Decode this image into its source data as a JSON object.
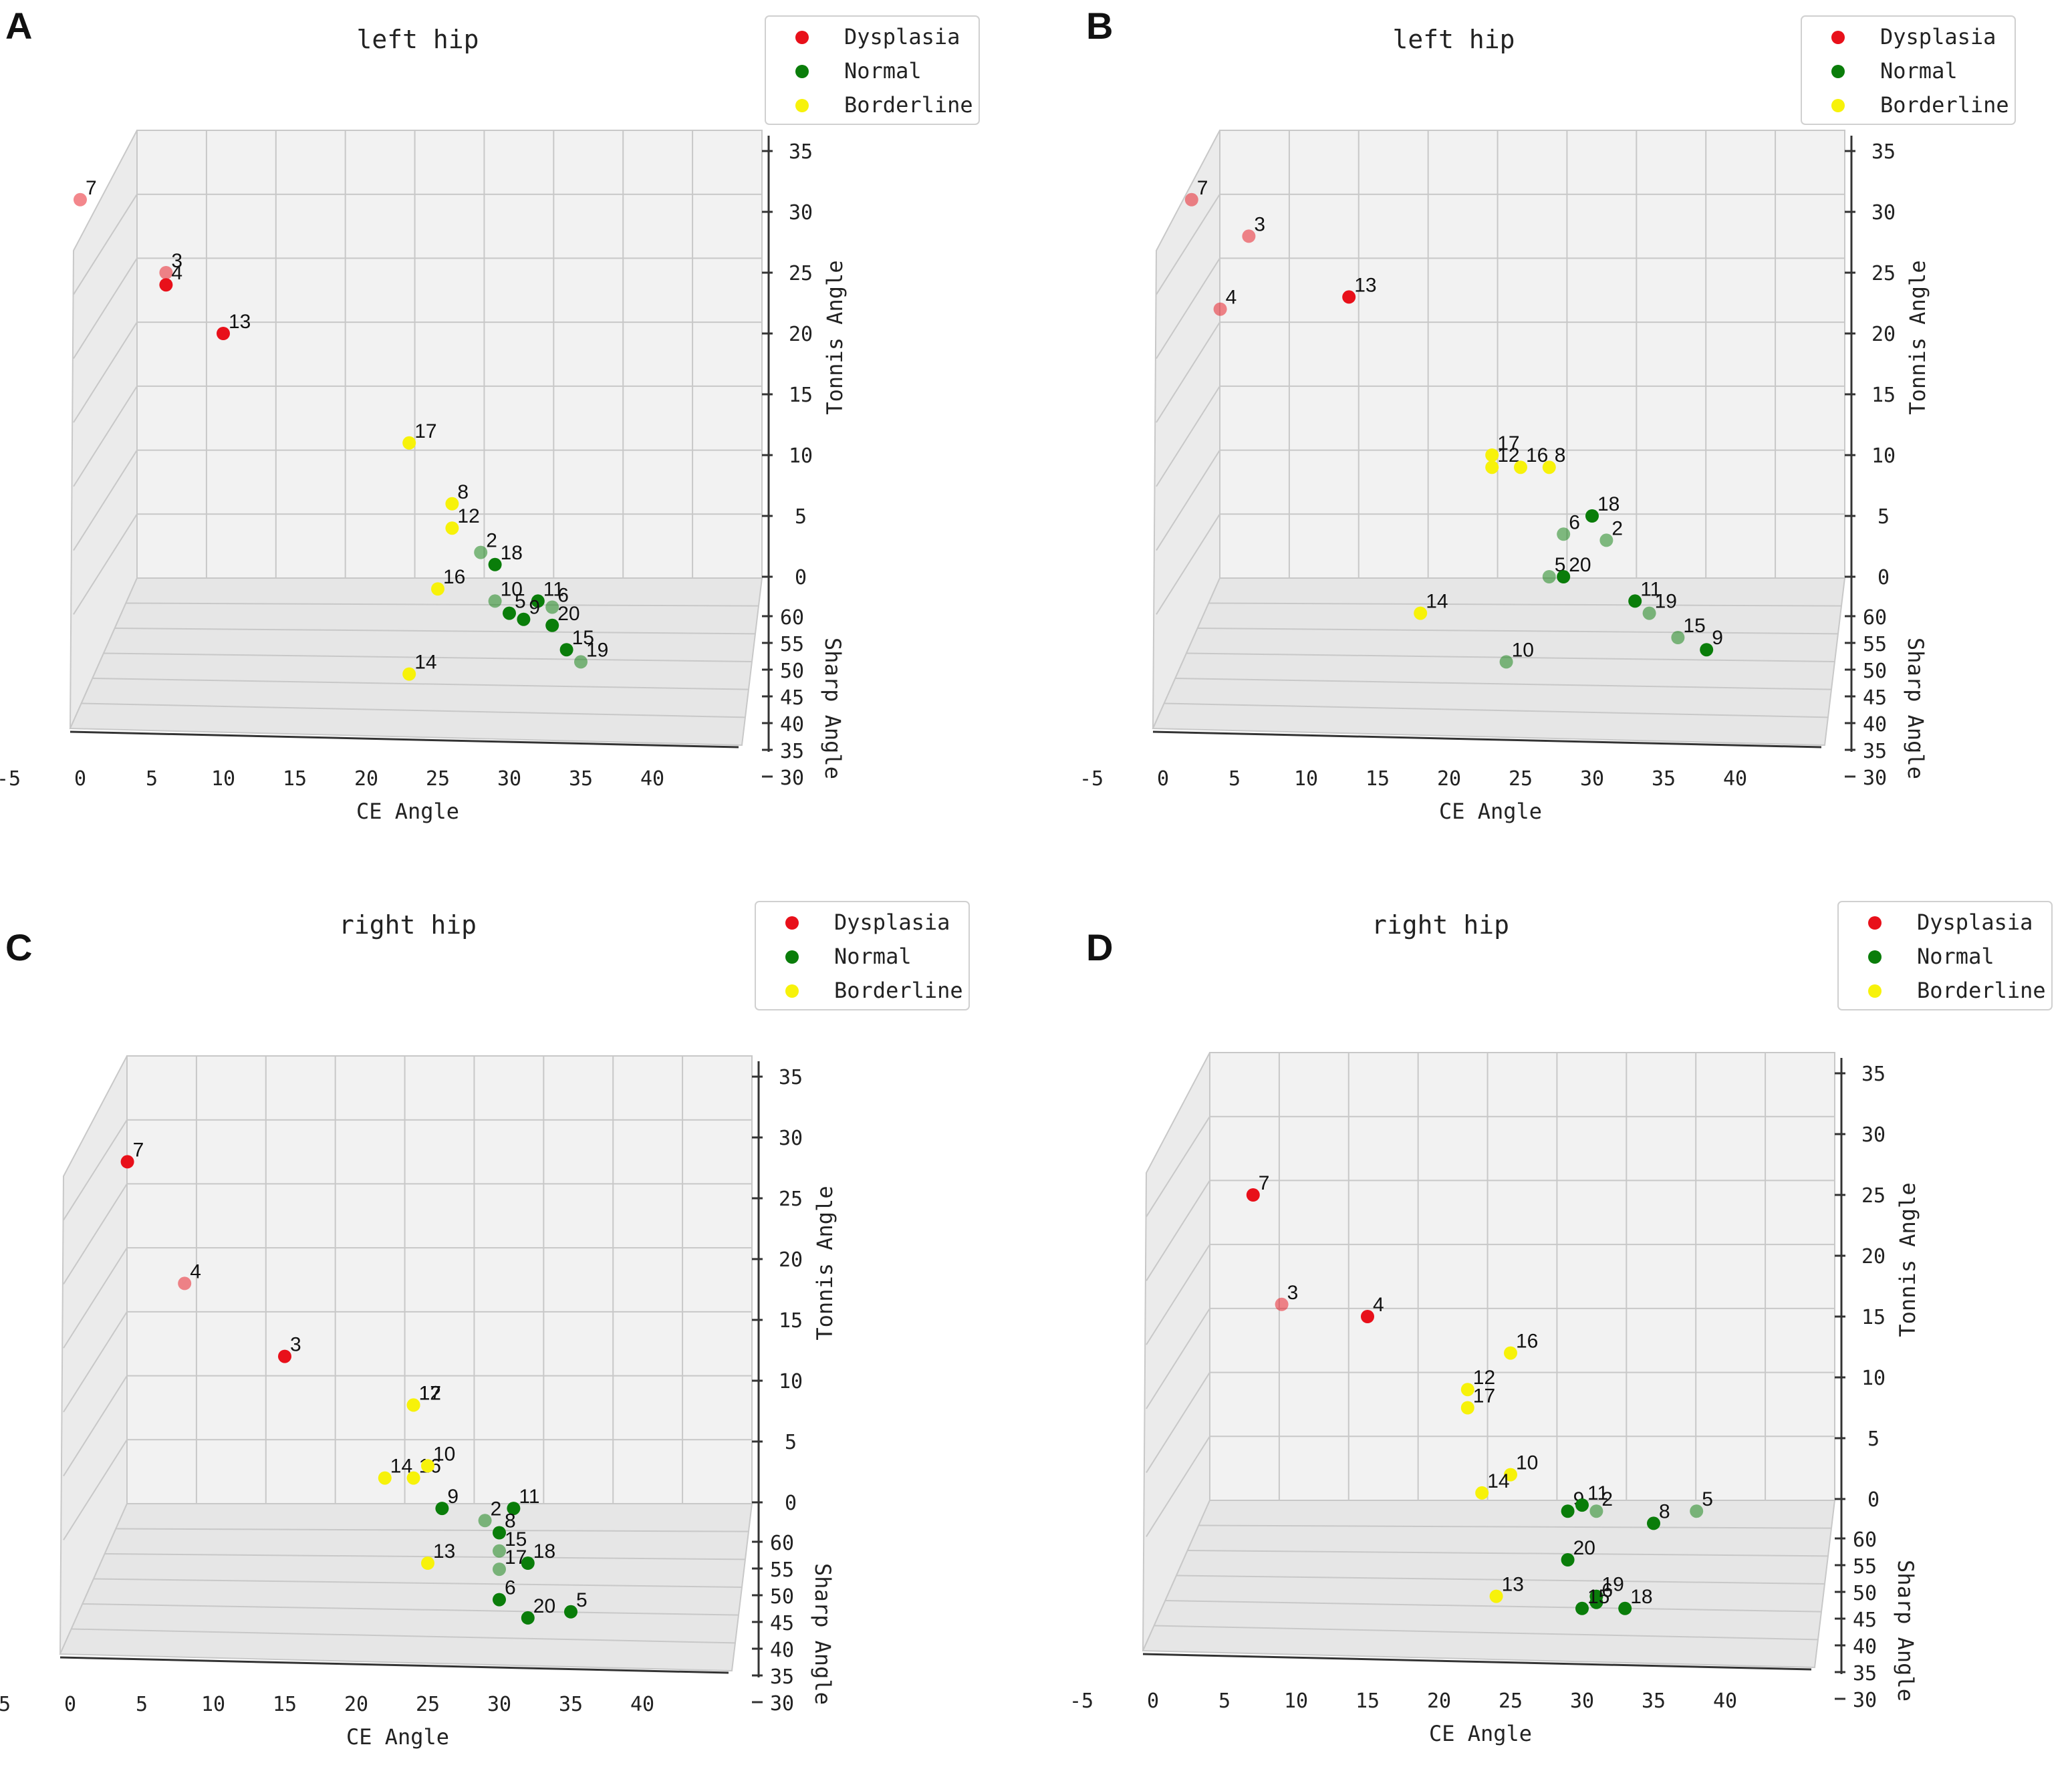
{
  "figure": {
    "panel_labels": [
      "A",
      "B",
      "C",
      "D"
    ]
  },
  "colors": {
    "dysplasia": "#e8101a",
    "normal": "#0a7d0a",
    "borderline": "#f7f20a",
    "pane": "#f2f2f2",
    "grid": "#c8c8c8",
    "axis": "#333333"
  },
  "chart_data": [
    {
      "panel": "A",
      "type": "scatter",
      "title": "left hip",
      "xlabel": "CE Angle",
      "ylabel": "Sharp Angle",
      "zlabel": "Tonnis Angle",
      "x_ticks": [
        "-5",
        "0",
        "5",
        "10",
        "15",
        "20",
        "25",
        "30",
        "35",
        "40"
      ],
      "y_ticks": [
        "60",
        "55",
        "50",
        "45",
        "40",
        "35",
        "30"
      ],
      "z_ticks": [
        "35",
        "30",
        "25",
        "20",
        "15",
        "10",
        "5",
        "0"
      ],
      "xlim": [
        -5,
        40
      ],
      "ylim": [
        30,
        60
      ],
      "zlim": [
        0,
        35
      ],
      "legend": [
        "Dysplasia",
        "Normal",
        "Borderline"
      ],
      "legend_location": "top-right",
      "points": [
        {
          "id": "7",
          "class": "dysplasia",
          "x": 0,
          "z": 31,
          "sharp": 52,
          "faded": true
        },
        {
          "id": "3",
          "class": "dysplasia",
          "x": 6,
          "z": 25,
          "sharp": 52,
          "faded": true
        },
        {
          "id": "4",
          "class": "dysplasia",
          "x": 6,
          "z": 24,
          "sharp": 52,
          "faded": false
        },
        {
          "id": "13",
          "class": "dysplasia",
          "x": 10,
          "z": 20,
          "sharp": 52,
          "faded": false
        },
        {
          "id": "17",
          "class": "borderline",
          "x": 23,
          "z": 11,
          "sharp": 52,
          "faded": false
        },
        {
          "id": "8",
          "class": "borderline",
          "x": 26,
          "z": 6,
          "sharp": 52,
          "faded": false
        },
        {
          "id": "12",
          "class": "borderline",
          "x": 26,
          "z": 4,
          "sharp": 52,
          "faded": false
        },
        {
          "id": "2",
          "class": "normal",
          "x": 28,
          "z": 2,
          "sharp": 52,
          "faded": true
        },
        {
          "id": "18",
          "class": "normal",
          "x": 29,
          "z": 1,
          "sharp": 52,
          "faded": false
        },
        {
          "id": "16",
          "class": "borderline",
          "x": 25,
          "z": -1,
          "sharp": 52,
          "faded": false
        },
        {
          "id": "10",
          "class": "normal",
          "x": 29,
          "z": -2,
          "sharp": 52,
          "faded": true
        },
        {
          "id": "11",
          "class": "normal",
          "x": 32,
          "z": -2,
          "sharp": 52,
          "faded": false
        },
        {
          "id": "6",
          "class": "normal",
          "x": 33,
          "z": -2.5,
          "sharp": 52,
          "faded": true
        },
        {
          "id": "5",
          "class": "normal",
          "x": 30,
          "z": -3,
          "sharp": 52,
          "faded": false
        },
        {
          "id": "9",
          "class": "normal",
          "x": 31,
          "z": -3.5,
          "sharp": 52,
          "faded": false
        },
        {
          "id": "20",
          "class": "normal",
          "x": 33,
          "z": -4,
          "sharp": 52,
          "faded": false
        },
        {
          "id": "15",
          "class": "normal",
          "x": 34,
          "z": -6,
          "sharp": 52,
          "faded": false
        },
        {
          "id": "19",
          "class": "normal",
          "x": 35,
          "z": -7,
          "sharp": 52,
          "faded": true
        },
        {
          "id": "14",
          "class": "borderline",
          "x": 23,
          "z": -8,
          "sharp": 52,
          "faded": false
        }
      ]
    },
    {
      "panel": "B",
      "type": "scatter",
      "title": "left hip",
      "xlabel": "CE Angle",
      "ylabel": "Sharp Angle",
      "zlabel": "Tonnis Angle",
      "x_ticks": [
        "-5",
        "0",
        "5",
        "10",
        "15",
        "20",
        "25",
        "30",
        "35",
        "40"
      ],
      "y_ticks": [
        "60",
        "55",
        "50",
        "45",
        "40",
        "35",
        "30"
      ],
      "z_ticks": [
        "35",
        "30",
        "25",
        "20",
        "15",
        "10",
        "5",
        "0"
      ],
      "xlim": [
        -5,
        40
      ],
      "ylim": [
        30,
        60
      ],
      "zlim": [
        0,
        35
      ],
      "legend": [
        "Dysplasia",
        "Normal",
        "Borderline"
      ],
      "legend_location": "top-right",
      "points": [
        {
          "id": "7",
          "class": "dysplasia",
          "x": 2,
          "z": 31,
          "sharp": 52,
          "faded": true
        },
        {
          "id": "3",
          "class": "dysplasia",
          "x": 6,
          "z": 28,
          "sharp": 52,
          "faded": true
        },
        {
          "id": "13",
          "class": "dysplasia",
          "x": 13,
          "z": 23,
          "sharp": 52,
          "faded": false
        },
        {
          "id": "4",
          "class": "dysplasia",
          "x": 4,
          "z": 22,
          "sharp": 52,
          "faded": true
        },
        {
          "id": "17",
          "class": "borderline",
          "x": 23,
          "z": 10,
          "sharp": 52,
          "faded": false
        },
        {
          "id": "12",
          "class": "borderline",
          "x": 23,
          "z": 9,
          "sharp": 52,
          "faded": false
        },
        {
          "id": "16",
          "class": "borderline",
          "x": 25,
          "z": 9,
          "sharp": 52,
          "faded": false
        },
        {
          "id": "8",
          "class": "borderline",
          "x": 27,
          "z": 9,
          "sharp": 52,
          "faded": false
        },
        {
          "id": "18",
          "class": "normal",
          "x": 30,
          "z": 5,
          "sharp": 52,
          "faded": false
        },
        {
          "id": "6",
          "class": "normal",
          "x": 28,
          "z": 3.5,
          "sharp": 52,
          "faded": true
        },
        {
          "id": "2",
          "class": "normal",
          "x": 31,
          "z": 3,
          "sharp": 52,
          "faded": true
        },
        {
          "id": "5",
          "class": "normal",
          "x": 27,
          "z": 0,
          "sharp": 52,
          "faded": true
        },
        {
          "id": "20",
          "class": "normal",
          "x": 28,
          "z": 0,
          "sharp": 52,
          "faded": false
        },
        {
          "id": "11",
          "class": "normal",
          "x": 33,
          "z": -2,
          "sharp": 52,
          "faded": false
        },
        {
          "id": "19",
          "class": "normal",
          "x": 34,
          "z": -3,
          "sharp": 52,
          "faded": true
        },
        {
          "id": "14",
          "class": "borderline",
          "x": 18,
          "z": -3,
          "sharp": 52,
          "faded": false
        },
        {
          "id": "15",
          "class": "normal",
          "x": 36,
          "z": -5,
          "sharp": 52,
          "faded": true
        },
        {
          "id": "9",
          "class": "normal",
          "x": 38,
          "z": -6,
          "sharp": 52,
          "faded": false
        },
        {
          "id": "10",
          "class": "normal",
          "x": 24,
          "z": -7,
          "sharp": 52,
          "faded": true
        }
      ]
    },
    {
      "panel": "C",
      "type": "scatter",
      "title": "right hip",
      "xlabel": "CE Angle",
      "ylabel": "Sharp Angle",
      "zlabel": "Tonnis Angle",
      "x_ticks": [
        "-5",
        "0",
        "5",
        "10",
        "15",
        "20",
        "25",
        "30",
        "35",
        "40"
      ],
      "y_ticks": [
        "60",
        "55",
        "50",
        "45",
        "40",
        "35",
        "30"
      ],
      "z_ticks": [
        "35",
        "30",
        "25",
        "20",
        "15",
        "10",
        "5",
        "0"
      ],
      "xlim": [
        -5,
        40
      ],
      "ylim": [
        30,
        60
      ],
      "zlim": [
        0,
        35
      ],
      "legend": [
        "Dysplasia",
        "Normal",
        "Borderline"
      ],
      "legend_location": "top-right",
      "points": [
        {
          "id": "7",
          "class": "dysplasia",
          "x": 4,
          "z": 28,
          "sharp": 52,
          "faded": false
        },
        {
          "id": "4",
          "class": "dysplasia",
          "x": 8,
          "z": 18,
          "sharp": 52,
          "faded": true
        },
        {
          "id": "3",
          "class": "dysplasia",
          "x": 15,
          "z": 12,
          "sharp": 52,
          "faded": false
        },
        {
          "id": "12",
          "class": "borderline",
          "x": 24,
          "z": 8,
          "sharp": 52,
          "faded": false
        },
        {
          "id": "17",
          "class": "borderline",
          "x": 24,
          "z": 8,
          "sharp": 52,
          "faded": false
        },
        {
          "id": "14",
          "class": "borderline",
          "x": 22,
          "z": 2,
          "sharp": 52,
          "faded": false
        },
        {
          "id": "16",
          "class": "borderline",
          "x": 24,
          "z": 2,
          "sharp": 52,
          "faded": false
        },
        {
          "id": "10",
          "class": "borderline",
          "x": 25,
          "z": 3,
          "sharp": 52,
          "faded": false
        },
        {
          "id": "9",
          "class": "normal",
          "x": 26,
          "z": -0.5,
          "sharp": 52,
          "faded": false
        },
        {
          "id": "11",
          "class": "normal",
          "x": 31,
          "z": -0.5,
          "sharp": 52,
          "faded": false
        },
        {
          "id": "2",
          "class": "normal",
          "x": 29,
          "z": -1.5,
          "sharp": 52,
          "faded": true
        },
        {
          "id": "8",
          "class": "normal",
          "x": 30,
          "z": -2.5,
          "sharp": 52,
          "faded": false
        },
        {
          "id": "15",
          "class": "normal",
          "x": 30,
          "z": -4,
          "sharp": 52,
          "faded": true
        },
        {
          "id": "18",
          "class": "normal",
          "x": 32,
          "z": -5,
          "sharp": 52,
          "faded": false
        },
        {
          "id": "17",
          "class": "normal",
          "x": 30,
          "z": -5.5,
          "sharp": 52,
          "faded": true
        },
        {
          "id": "13",
          "class": "borderline",
          "x": 25,
          "z": -5,
          "sharp": 52,
          "faded": false
        },
        {
          "id": "6",
          "class": "normal",
          "x": 30,
          "z": -8,
          "sharp": 52,
          "faded": false
        },
        {
          "id": "20",
          "class": "normal",
          "x": 32,
          "z": -9.5,
          "sharp": 52,
          "faded": false
        },
        {
          "id": "5",
          "class": "normal",
          "x": 35,
          "z": -9,
          "sharp": 52,
          "faded": false
        }
      ]
    },
    {
      "panel": "D",
      "type": "scatter",
      "title": "right hip",
      "xlabel": "CE Angle",
      "ylabel": "Sharp Angle",
      "zlabel": "Tonnis Angle",
      "x_ticks": [
        "-5",
        "0",
        "5",
        "10",
        "15",
        "20",
        "25",
        "30",
        "35",
        "40"
      ],
      "y_ticks": [
        "60",
        "55",
        "50",
        "45",
        "40",
        "35",
        "30"
      ],
      "z_ticks": [
        "35",
        "30",
        "25",
        "20",
        "15",
        "10",
        "5",
        "0"
      ],
      "xlim": [
        -5,
        40
      ],
      "ylim": [
        30,
        60
      ],
      "zlim": [
        0,
        35
      ],
      "legend": [
        "Dysplasia",
        "Normal",
        "Borderline"
      ],
      "legend_location": "top-right",
      "points": [
        {
          "id": "7",
          "class": "dysplasia",
          "x": 7,
          "z": 25,
          "sharp": 52,
          "faded": false
        },
        {
          "id": "3",
          "class": "dysplasia",
          "x": 9,
          "z": 16,
          "sharp": 52,
          "faded": true
        },
        {
          "id": "4",
          "class": "dysplasia",
          "x": 15,
          "z": 15,
          "sharp": 52,
          "faded": false
        },
        {
          "id": "16",
          "class": "borderline",
          "x": 25,
          "z": 12,
          "sharp": 52,
          "faded": false
        },
        {
          "id": "12",
          "class": "borderline",
          "x": 22,
          "z": 9,
          "sharp": 52,
          "faded": false
        },
        {
          "id": "17",
          "class": "borderline",
          "x": 22,
          "z": 7.5,
          "sharp": 52,
          "faded": false
        },
        {
          "id": "10",
          "class": "borderline",
          "x": 25,
          "z": 2,
          "sharp": 52,
          "faded": false
        },
        {
          "id": "14",
          "class": "borderline",
          "x": 23,
          "z": 0.5,
          "sharp": 52,
          "faded": false
        },
        {
          "id": "9",
          "class": "normal",
          "x": 29,
          "z": -1,
          "sharp": 52,
          "faded": false
        },
        {
          "id": "11",
          "class": "normal",
          "x": 30,
          "z": -0.5,
          "sharp": 52,
          "faded": false
        },
        {
          "id": "2",
          "class": "normal",
          "x": 31,
          "z": -1,
          "sharp": 52,
          "faded": true
        },
        {
          "id": "5",
          "class": "normal",
          "x": 38,
          "z": -1,
          "sharp": 52,
          "faded": true
        },
        {
          "id": "8",
          "class": "normal",
          "x": 35,
          "z": -2,
          "sharp": 52,
          "faded": false
        },
        {
          "id": "20",
          "class": "normal",
          "x": 29,
          "z": -5,
          "sharp": 52,
          "faded": false
        },
        {
          "id": "19",
          "class": "normal",
          "x": 31,
          "z": -8,
          "sharp": 52,
          "faded": false
        },
        {
          "id": "6",
          "class": "normal",
          "x": 31,
          "z": -8.5,
          "sharp": 52,
          "faded": false
        },
        {
          "id": "15",
          "class": "normal",
          "x": 30,
          "z": -9,
          "sharp": 52,
          "faded": false
        },
        {
          "id": "18",
          "class": "normal",
          "x": 33,
          "z": -9,
          "sharp": 52,
          "faded": false
        },
        {
          "id": "13",
          "class": "borderline",
          "x": 24,
          "z": -8,
          "sharp": 52,
          "faded": false
        }
      ]
    }
  ]
}
